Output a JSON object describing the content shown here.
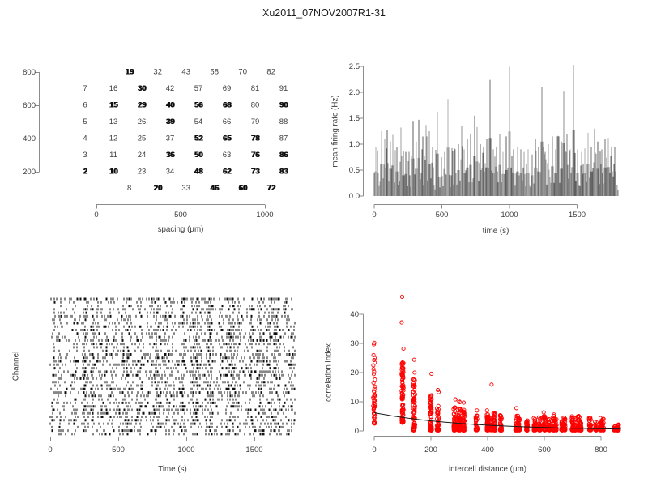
{
  "title": "Xu2011_07NOV2007R1-31",
  "colors": {
    "marker_red": "#ff0000",
    "trace_gray": "#7b7b7b",
    "axis_gray": "#8c8c8c",
    "text_gray": "#3d3d3d",
    "spike_black": "#111111",
    "fit_black": "#1a1a1a"
  },
  "chart_data": [
    {
      "id": "electrode-map",
      "type": "scatter",
      "xlabel": "spacing (µm)",
      "ylabel": "",
      "x_ticks": [
        "0",
        "500",
        "1000"
      ],
      "y_ticks": [
        "800",
        "600",
        "400",
        "200"
      ],
      "xlim": [
        0,
        1000
      ],
      "ylim": [
        100,
        800
      ],
      "note": "channel numbers plotted at hexagonal electrode positions; bold entries are overlapping labels",
      "rows": [
        {
          "y": 800,
          "offset": true,
          "cells": [
            {
              "t": "19",
              "b": true
            },
            {
              "t": "32",
              "b": false
            },
            {
              "t": "43",
              "b": false
            },
            {
              "t": "58",
              "b": false
            },
            {
              "t": "70",
              "b": false
            },
            {
              "t": "82",
              "b": false
            }
          ]
        },
        {
          "y": 700,
          "offset": false,
          "cells": [
            {
              "t": "7",
              "b": false
            },
            {
              "t": "16",
              "b": false
            },
            {
              "t": "30",
              "b": true
            },
            {
              "t": "42",
              "b": false
            },
            {
              "t": "57",
              "b": false
            },
            {
              "t": "69",
              "b": false
            },
            {
              "t": "81",
              "b": false
            },
            {
              "t": "91",
              "b": false
            }
          ]
        },
        {
          "y": 600,
          "offset": false,
          "cells": [
            {
              "t": "6",
              "b": false
            },
            {
              "t": "15",
              "b": true
            },
            {
              "t": "29",
              "b": true
            },
            {
              "t": "40",
              "b": true
            },
            {
              "t": "56",
              "b": true
            },
            {
              "t": "68",
              "b": true
            },
            {
              "t": "80",
              "b": false
            },
            {
              "t": "90",
              "b": true
            }
          ]
        },
        {
          "y": 500,
          "offset": false,
          "cells": [
            {
              "t": "5",
              "b": false
            },
            {
              "t": "13",
              "b": false
            },
            {
              "t": "26",
              "b": false
            },
            {
              "t": "39",
              "b": true
            },
            {
              "t": "54",
              "b": false
            },
            {
              "t": "66",
              "b": false
            },
            {
              "t": "79",
              "b": false
            },
            {
              "t": "88",
              "b": false
            }
          ]
        },
        {
          "y": 400,
          "offset": false,
          "cells": [
            {
              "t": "4",
              "b": false
            },
            {
              "t": "12",
              "b": false
            },
            {
              "t": "25",
              "b": false
            },
            {
              "t": "37",
              "b": false
            },
            {
              "t": "52",
              "b": true
            },
            {
              "t": "65",
              "b": true
            },
            {
              "t": "78",
              "b": true
            },
            {
              "t": "87",
              "b": false
            }
          ]
        },
        {
          "y": 300,
          "offset": false,
          "cells": [
            {
              "t": "3",
              "b": false
            },
            {
              "t": "11",
              "b": false
            },
            {
              "t": "24",
              "b": false
            },
            {
              "t": "36",
              "b": true
            },
            {
              "t": "50",
              "b": true
            },
            {
              "t": "63",
              "b": false
            },
            {
              "t": "76",
              "b": true
            },
            {
              "t": "86",
              "b": true
            }
          ]
        },
        {
          "y": 200,
          "offset": false,
          "cells": [
            {
              "t": "2",
              "b": true
            },
            {
              "t": "10",
              "b": true
            },
            {
              "t": "23",
              "b": false
            },
            {
              "t": "34",
              "b": false
            },
            {
              "t": "48",
              "b": true
            },
            {
              "t": "62",
              "b": true
            },
            {
              "t": "73",
              "b": true
            },
            {
              "t": "83",
              "b": true
            }
          ]
        },
        {
          "y": 100,
          "offset": true,
          "cells": [
            {
              "t": "8",
              "b": false
            },
            {
              "t": "20",
              "b": true
            },
            {
              "t": "33",
              "b": false
            },
            {
              "t": "46",
              "b": true
            },
            {
              "t": "60",
              "b": true
            },
            {
              "t": "72",
              "b": true
            }
          ]
        }
      ]
    },
    {
      "id": "mean-firing-rate",
      "type": "line",
      "xlabel": "time (s)",
      "ylabel": "mean firing rate (Hz)",
      "x_ticks": [
        "0",
        "500",
        "1000",
        "1500"
      ],
      "y_ticks": [
        "0.0",
        "0.5",
        "1.0",
        "1.5",
        "2.0",
        "2.5"
      ],
      "xlim": [
        0,
        1800
      ],
      "ylim": [
        0,
        2.5
      ],
      "note": "dense gray population-rate trace; prominent peaks listed as [time_s, rate_hz]",
      "peaks": [
        [
          10,
          0.95
        ],
        [
          25,
          0.88
        ],
        [
          55,
          1.25
        ],
        [
          75,
          1.1
        ],
        [
          95,
          1.27
        ],
        [
          120,
          1.05
        ],
        [
          140,
          1.18
        ],
        [
          165,
          0.95
        ],
        [
          195,
          1.32
        ],
        [
          215,
          0.8
        ],
        [
          235,
          0.85
        ],
        [
          255,
          0.8
        ],
        [
          285,
          1.45
        ],
        [
          310,
          1.05
        ],
        [
          330,
          1.47
        ],
        [
          355,
          0.9
        ],
        [
          385,
          1.37
        ],
        [
          410,
          1.25
        ],
        [
          430,
          0.95
        ],
        [
          470,
          1.63
        ],
        [
          495,
          0.75
        ],
        [
          520,
          0.85
        ],
        [
          545,
          1.87
        ],
        [
          575,
          0.8
        ],
        [
          600,
          0.9
        ],
        [
          625,
          1.0
        ],
        [
          645,
          1.36
        ],
        [
          665,
          0.9
        ],
        [
          690,
          1.1
        ],
        [
          715,
          1.2
        ],
        [
          740,
          1.55
        ],
        [
          760,
          1.33
        ],
        [
          785,
          1.0
        ],
        [
          810,
          0.95
        ],
        [
          830,
          1.1
        ],
        [
          855,
          2.24
        ],
        [
          880,
          0.9
        ],
        [
          905,
          0.95
        ],
        [
          930,
          1.2
        ],
        [
          955,
          0.85
        ],
        [
          975,
          1.0
        ],
        [
          1000,
          2.49
        ],
        [
          1030,
          0.9
        ],
        [
          1060,
          0.95
        ],
        [
          1085,
          0.9
        ],
        [
          1110,
          0.85
        ],
        [
          1140,
          0.9
        ],
        [
          1165,
          0.8
        ],
        [
          1190,
          1.1
        ],
        [
          1215,
          0.95
        ],
        [
          1240,
          2.1
        ],
        [
          1265,
          0.85
        ],
        [
          1290,
          1.0
        ],
        [
          1315,
          1.15
        ],
        [
          1340,
          0.9
        ],
        [
          1360,
          1.16
        ],
        [
          1385,
          1.05
        ],
        [
          1400,
          2.03
        ],
        [
          1425,
          1.2
        ],
        [
          1450,
          0.9
        ],
        [
          1475,
          2.53
        ],
        [
          1505,
          0.9
        ],
        [
          1530,
          0.85
        ],
        [
          1555,
          0.9
        ],
        [
          1580,
          1.22
        ],
        [
          1605,
          0.95
        ],
        [
          1630,
          1.3
        ],
        [
          1655,
          1.05
        ],
        [
          1680,
          0.9
        ],
        [
          1705,
          1.1
        ],
        [
          1730,
          1.12
        ],
        [
          1755,
          0.95
        ],
        [
          1780,
          0.95
        ]
      ]
    },
    {
      "id": "spike-raster",
      "type": "scatter",
      "xlabel": "Time (s)",
      "ylabel": "Channel",
      "x_ticks": [
        "0",
        "500",
        "1000",
        "1500"
      ],
      "xlim": [
        0,
        1800
      ],
      "n_channels": 40,
      "note": "dense black spike raster across ~40 channels with correlated vertical burst bands"
    },
    {
      "id": "correlation-index",
      "type": "scatter",
      "xlabel": "intercell distance (µm)",
      "ylabel": "correlation index",
      "x_ticks": [
        "0",
        "200",
        "400",
        "600",
        "800"
      ],
      "y_ticks": [
        "0",
        "10",
        "20",
        "30",
        "40"
      ],
      "xlim": [
        0,
        870
      ],
      "ylim": [
        0,
        47
      ],
      "note": "red open circles in vertical columns at discrete electrode distances; black exponential fit",
      "clusters": [
        [
          0,
          12,
          25
        ],
        [
          100,
          23.5,
          85
        ],
        [
          141,
          17.5,
          60
        ],
        [
          200,
          12,
          65
        ],
        [
          224,
          13.5,
          50
        ],
        [
          283,
          8,
          50
        ],
        [
          300,
          7.5,
          55
        ],
        [
          316,
          7,
          45
        ],
        [
          361,
          5.5,
          35
        ],
        [
          400,
          5.5,
          55
        ],
        [
          412,
          4.5,
          30
        ],
        [
          424,
          6,
          40
        ],
        [
          447,
          5.5,
          35
        ],
        [
          500,
          5,
          25
        ],
        [
          510,
          4.5,
          40
        ],
        [
          539,
          3.5,
          30
        ],
        [
          566,
          4.5,
          35
        ],
        [
          583,
          4.5,
          30
        ],
        [
          600,
          5,
          40
        ],
        [
          616,
          4,
          30
        ],
        [
          632,
          5,
          35
        ],
        [
          640,
          4,
          30
        ],
        [
          663,
          3.5,
          25
        ],
        [
          671,
          4.5,
          30
        ],
        [
          700,
          4.5,
          35
        ],
        [
          707,
          4.5,
          25
        ],
        [
          721,
          5,
          30
        ],
        [
          728,
          4,
          25
        ],
        [
          761,
          4.5,
          30
        ],
        [
          781,
          3,
          25
        ],
        [
          800,
          3,
          30
        ],
        [
          806,
          4,
          20
        ],
        [
          849,
          1.5,
          20
        ],
        [
          860,
          2,
          30
        ]
      ],
      "outliers": [
        [
          0,
          30.2
        ],
        [
          0,
          29.7
        ],
        [
          0,
          26
        ],
        [
          0,
          25
        ],
        [
          0,
          24.3
        ],
        [
          0,
          23.4
        ],
        [
          0,
          22.5
        ],
        [
          0,
          21.2
        ],
        [
          0,
          20.3
        ],
        [
          0,
          19.5
        ],
        [
          0,
          17.6
        ],
        [
          0,
          16.5
        ],
        [
          0,
          15.2
        ],
        [
          0,
          14.4
        ],
        [
          0,
          13.6
        ],
        [
          0,
          11.5
        ],
        [
          0,
          10.4
        ],
        [
          0,
          8.6
        ],
        [
          0,
          5.9
        ],
        [
          0,
          2.6
        ],
        [
          100,
          46
        ],
        [
          100,
          37.2
        ],
        [
          100,
          28.2
        ],
        [
          100,
          23.4
        ],
        [
          141,
          24.4
        ],
        [
          141,
          20
        ],
        [
          141,
          17.4
        ],
        [
          200,
          19.6
        ],
        [
          200,
          12
        ],
        [
          224,
          14
        ],
        [
          224,
          13.3
        ],
        [
          283,
          10.8
        ],
        [
          300,
          10.4
        ],
        [
          300,
          9.9
        ],
        [
          316,
          9.7
        ],
        [
          361,
          7
        ],
        [
          400,
          7
        ],
        [
          412,
          15.9
        ],
        [
          500,
          7.8
        ],
        [
          510,
          5.2
        ],
        [
          600,
          6.4
        ],
        [
          632,
          5.6
        ],
        [
          671,
          4.6
        ],
        [
          700,
          5
        ],
        [
          721,
          5.1
        ],
        [
          761,
          4.5
        ],
        [
          800,
          4.4
        ]
      ],
      "fit": {
        "type": "exponential",
        "a": 6.0,
        "tau": 320,
        "c": 0.25
      }
    }
  ]
}
